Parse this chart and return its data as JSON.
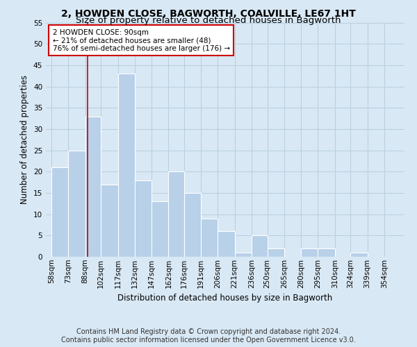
{
  "title": "2, HOWDEN CLOSE, BAGWORTH, COALVILLE, LE67 1HT",
  "subtitle": "Size of property relative to detached houses in Bagworth",
  "xlabel": "Distribution of detached houses by size in Bagworth",
  "ylabel": "Number of detached properties",
  "footer_line1": "Contains HM Land Registry data © Crown copyright and database right 2024.",
  "footer_line2": "Contains public sector information licensed under the Open Government Licence v3.0.",
  "bin_labels": [
    "58sqm",
    "73sqm",
    "88sqm",
    "102sqm",
    "117sqm",
    "132sqm",
    "147sqm",
    "162sqm",
    "176sqm",
    "191sqm",
    "206sqm",
    "221sqm",
    "236sqm",
    "250sqm",
    "265sqm",
    "280sqm",
    "295sqm",
    "310sqm",
    "324sqm",
    "339sqm",
    "354sqm"
  ],
  "bar_values": [
    21,
    25,
    33,
    17,
    43,
    18,
    13,
    20,
    15,
    9,
    6,
    1,
    5,
    2,
    0,
    2,
    2,
    0,
    1
  ],
  "bar_left_edges": [
    58,
    73,
    88,
    102,
    117,
    132,
    147,
    162,
    176,
    191,
    206,
    221,
    236,
    250,
    265,
    280,
    295,
    310,
    324
  ],
  "bar_widths": [
    15,
    15,
    14,
    15,
    15,
    15,
    15,
    14,
    15,
    15,
    15,
    15,
    14,
    15,
    15,
    15,
    15,
    14,
    15
  ],
  "bar_color": "#b8d0e8",
  "bar_edge_color": "#ffffff",
  "grid_color": "#b8cfe0",
  "bg_color": "#d8e8f4",
  "plot_bg_color": "#d8e8f4",
  "red_line_x": 90,
  "red_line_color": "#cc0000",
  "ylim": [
    0,
    55
  ],
  "yticks": [
    0,
    5,
    10,
    15,
    20,
    25,
    30,
    35,
    40,
    45,
    50,
    55
  ],
  "annotation_text_line1": "2 HOWDEN CLOSE: 90sqm",
  "annotation_text_line2": "← 21% of detached houses are smaller (48)",
  "annotation_text_line3": "76% of semi-detached houses are larger (176) →",
  "annotation_box_color": "#ffffff",
  "annotation_box_edge_color": "#cc0000",
  "title_fontsize": 10,
  "subtitle_fontsize": 9.5,
  "axis_label_fontsize": 8.5,
  "tick_fontsize": 7.5,
  "annotation_fontsize": 7.5,
  "footer_fontsize": 7
}
